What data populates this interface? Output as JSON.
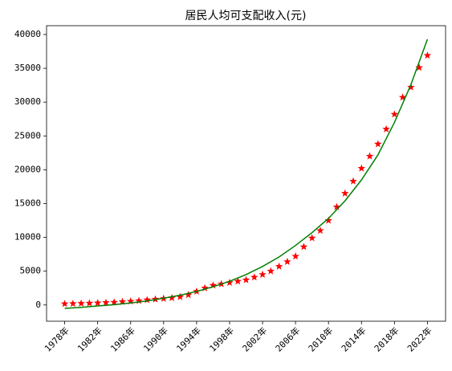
{
  "chart_data": {
    "type": "scatter",
    "title": "居民人均可支配收入(元)",
    "xlim": [
      1975.8,
      2024.2
    ],
    "ylim": [
      -2400,
      41300
    ],
    "xticks": [
      {
        "value": 1978,
        "label": "1978年"
      },
      {
        "value": 1982,
        "label": "1982年"
      },
      {
        "value": 1986,
        "label": "1986年"
      },
      {
        "value": 1990,
        "label": "1990年"
      },
      {
        "value": 1994,
        "label": "1994年"
      },
      {
        "value": 1998,
        "label": "1998年"
      },
      {
        "value": 2002,
        "label": "2002年"
      },
      {
        "value": 2006,
        "label": "2006年"
      },
      {
        "value": 2010,
        "label": "2010年"
      },
      {
        "value": 2014,
        "label": "2014年"
      },
      {
        "value": 2018,
        "label": "2018年"
      },
      {
        "value": 2022,
        "label": "2022年"
      }
    ],
    "yticks": [
      0,
      5000,
      10000,
      15000,
      20000,
      25000,
      30000,
      35000,
      40000
    ],
    "series": [
      {
        "type": "scatter",
        "color": "#ff0000",
        "x": [
          1978,
          1979,
          1980,
          1981,
          1982,
          1983,
          1984,
          1985,
          1986,
          1987,
          1988,
          1989,
          1990,
          1991,
          1992,
          1993,
          1994,
          1995,
          1996,
          1997,
          1998,
          1999,
          2000,
          2001,
          2002,
          2003,
          2004,
          2005,
          2006,
          2007,
          2008,
          2009,
          2010,
          2011,
          2012,
          2013,
          2014,
          2015,
          2016,
          2017,
          2018,
          2019,
          2020,
          2021,
          2022
        ],
        "values": [
          170,
          200,
          230,
          260,
          300,
          350,
          400,
          480,
          550,
          620,
          750,
          850,
          950,
          1050,
          1200,
          1500,
          2000,
          2500,
          2900,
          3100,
          3300,
          3500,
          3700,
          4100,
          4500,
          5000,
          5700,
          6400,
          7200,
          8600,
          9900,
          11000,
          12500,
          14500,
          16500,
          18300,
          20200,
          22000,
          23800,
          26000,
          28200,
          30700,
          32200,
          35100,
          36900
        ]
      },
      {
        "type": "line",
        "color": "#008000",
        "x": [
          1978,
          1980,
          1982,
          1984,
          1986,
          1988,
          1990,
          1992,
          1994,
          1996,
          1998,
          2000,
          2002,
          2004,
          2006,
          2008,
          2010,
          2012,
          2014,
          2016,
          2018,
          2020,
          2022
        ],
        "values": [
          -500,
          -350,
          -150,
          50,
          300,
          600,
          1000,
          1450,
          2000,
          2700,
          3500,
          4500,
          5700,
          7100,
          8800,
          10700,
          12800,
          15400,
          18500,
          22200,
          27000,
          32600,
          39300
        ]
      }
    ]
  }
}
